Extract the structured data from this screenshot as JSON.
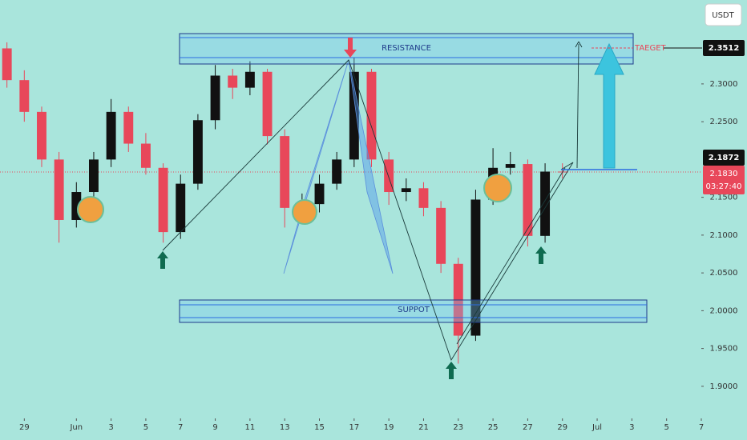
{
  "chart_data": {
    "type": "candlestick",
    "currency": "USDT",
    "x": [
      28,
      29,
      30,
      31,
      32,
      33,
      34,
      35,
      36,
      37,
      38,
      39,
      40,
      41,
      42,
      43,
      44,
      45,
      46,
      47,
      48,
      49,
      50,
      51,
      52,
      53,
      54,
      55,
      56,
      57,
      58,
      59,
      60
    ],
    "open": [
      2.347,
      2.305,
      2.263,
      2.2,
      2.12,
      2.157,
      2.2,
      2.263,
      2.221,
      2.189,
      2.104,
      2.168,
      2.252,
      2.311,
      2.295,
      2.316,
      2.231,
      2.136,
      2.141,
      2.168,
      2.2,
      2.316,
      2.2,
      2.157,
      2.162,
      2.136,
      2.062,
      1.967,
      2.147,
      2.189,
      2.194,
      2.099,
      2.184
    ],
    "high": [
      2.355,
      2.318,
      2.27,
      2.21,
      2.17,
      2.21,
      2.28,
      2.27,
      2.235,
      2.195,
      2.18,
      2.26,
      2.325,
      2.32,
      2.33,
      2.32,
      2.24,
      2.155,
      2.18,
      2.21,
      2.335,
      2.32,
      2.21,
      2.175,
      2.17,
      2.145,
      2.07,
      2.16,
      2.215,
      2.21,
      2.2,
      2.195,
      2.195
    ],
    "low": [
      2.295,
      2.25,
      2.19,
      2.09,
      2.11,
      2.145,
      2.19,
      2.21,
      2.18,
      2.09,
      2.095,
      2.16,
      2.24,
      2.28,
      2.285,
      2.22,
      2.11,
      2.12,
      2.13,
      2.16,
      2.19,
      2.19,
      2.14,
      2.145,
      2.125,
      2.05,
      1.93,
      1.96,
      2.14,
      2.18,
      2.085,
      2.09,
      2.175
    ],
    "close": [
      2.305,
      2.263,
      2.2,
      2.12,
      2.157,
      2.2,
      2.263,
      2.221,
      2.189,
      2.104,
      2.168,
      2.252,
      2.311,
      2.295,
      2.316,
      2.231,
      2.136,
      2.141,
      2.168,
      2.2,
      2.316,
      2.2,
      2.157,
      2.162,
      2.136,
      2.062,
      1.967,
      2.147,
      2.189,
      2.194,
      2.099,
      2.184,
      2.183
    ],
    "up_color": "#111111",
    "down_color": "#e8475a",
    "xlim": [
      27.6,
      68
    ],
    "ylim": [
      1.866,
      2.411
    ],
    "xticks": [
      29,
      {
        "value": 32,
        "label": "Jun"
      },
      {
        "value": 34,
        "label": "3"
      },
      {
        "value": 36,
        "label": "5"
      },
      {
        "value": 38,
        "label": "7"
      },
      {
        "value": 40,
        "label": "9"
      },
      {
        "value": 42,
        "label": "11"
      },
      {
        "value": 44,
        "label": "13"
      },
      {
        "value": 46,
        "label": "15"
      },
      {
        "value": 48,
        "label": "17"
      },
      {
        "value": 50,
        "label": "19"
      },
      {
        "value": 52,
        "label": "21"
      },
      {
        "value": 54,
        "label": "23"
      },
      {
        "value": 56,
        "label": "25"
      },
      {
        "value": 58,
        "label": "27"
      },
      {
        "value": 60,
        "label": "29"
      },
      {
        "value": 62,
        "label": "Jul"
      },
      {
        "value": 64,
        "label": "3"
      },
      {
        "value": 66,
        "label": "5"
      },
      {
        "value": 68,
        "label": "7"
      }
    ],
    "yticks": [
      {
        "value": 1.9,
        "label": "1.9000"
      },
      {
        "value": 1.95,
        "label": "1.9500"
      },
      {
        "value": 2.0,
        "label": "2.0000"
      },
      {
        "value": 2.05,
        "label": "2.0500"
      },
      {
        "value": 2.1,
        "label": "2.1000"
      },
      {
        "value": 2.15,
        "label": "2.1500"
      },
      {
        "value": 2.25,
        "label": "2.2500"
      },
      {
        "value": 2.3,
        "label": "2.3000"
      }
    ],
    "annotations": {
      "resistance": "RESISTANCE",
      "support": "SUPPOT",
      "target": "TAEGET",
      "target_price": "2.3512",
      "high_price": "2.1872",
      "last_price": "2.1830",
      "countdown": "03:27:40"
    }
  }
}
